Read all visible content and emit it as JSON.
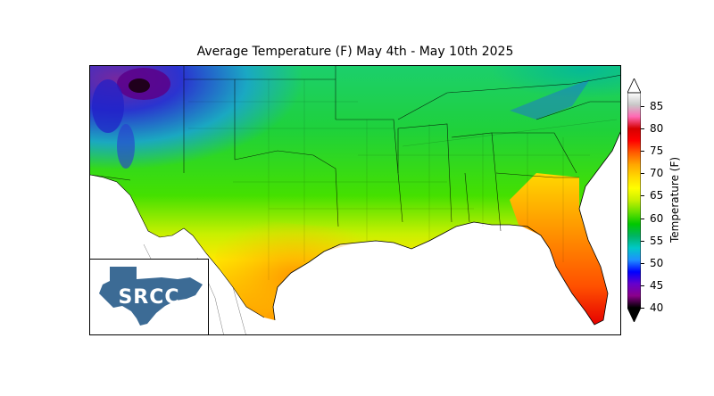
{
  "title": "Average Temperature (F) May 4th - May 10th 2025",
  "logo": {
    "text": "SRCC",
    "color": "#3c6b95"
  },
  "colorbar": {
    "label": "Temperature (F)",
    "ticks": [
      "85",
      "80",
      "75",
      "70",
      "65",
      "60",
      "55",
      "50",
      "45",
      "40"
    ],
    "min": 40,
    "max": 88,
    "stops": [
      "#ffffff",
      "#c8c8c8",
      "#ff69b4",
      "#d60000",
      "#ff0000",
      "#ff5a00",
      "#ffa500",
      "#ffd700",
      "#ffff00",
      "#c8f000",
      "#66e000",
      "#00c800",
      "#00b464",
      "#00c8c8",
      "#1e90ff",
      "#0000ff",
      "#6600cc",
      "#8b008b",
      "#000000"
    ]
  }
}
